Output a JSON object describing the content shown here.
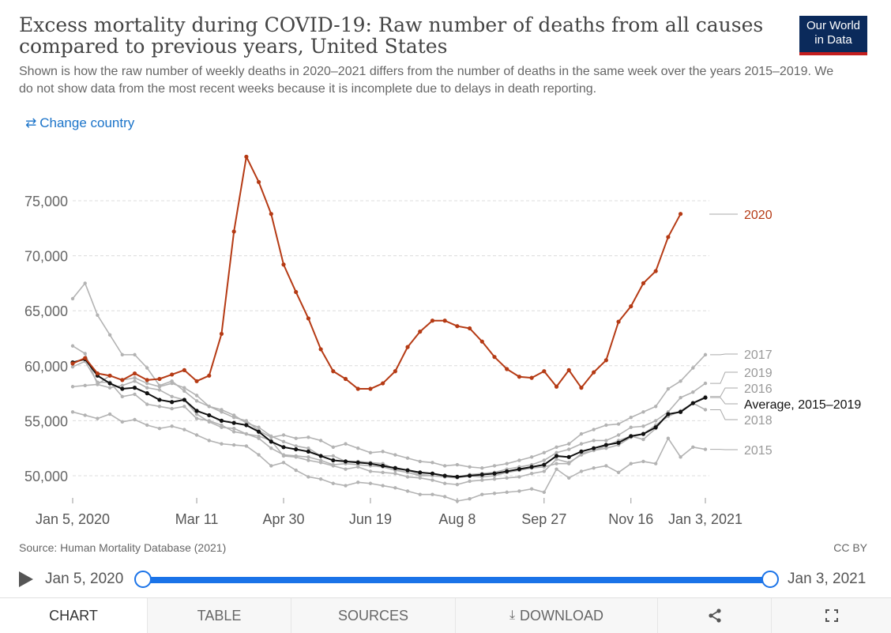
{
  "header": {
    "title": "Excess mortality during COVID-19: Raw number of deaths from all causes compared to previous years, United States",
    "subtitle": "Shown is how the raw number of weekly deaths in 2020–2021 differs from the number of deaths in the same week over the years 2015–2019. We do not show data from the most recent weeks because it is incomplete due to delays in death reporting.",
    "logo_line1": "Our World",
    "logo_line2": "in Data",
    "change_country_label": "Change country"
  },
  "colors": {
    "y2020": "#b53a14",
    "average": "#111111",
    "past": "#b3b3b3",
    "accent": "#1a73e8",
    "logo_bg": "#0b2a5b",
    "logo_stripe": "#c41e1e"
  },
  "chart_data": {
    "type": "line",
    "ylim": [
      48000,
      78000
    ],
    "y_ticks": [
      50000,
      55000,
      60000,
      65000,
      70000,
      75000
    ],
    "y_tick_labels": [
      "50,000",
      "55,000",
      "60,000",
      "65,000",
      "70,000",
      "75,000"
    ],
    "x_tick_labels": [
      "Jan 5, 2020",
      "Mar 11",
      "Apr 30",
      "Jun 19",
      "Aug 8",
      "Sep 27",
      "Nov 16",
      "Jan 3, 2021"
    ],
    "x_tick_weeks": [
      1,
      11,
      18,
      25,
      32,
      39,
      46,
      52
    ],
    "series": [
      {
        "name": "2020",
        "values": [
          60200,
          60700,
          59300,
          59100,
          58700,
          59300,
          58700,
          58800,
          59200,
          59600,
          58600,
          59100,
          62900,
          72200,
          79000,
          76700,
          73800,
          69200,
          66700,
          64300,
          61500,
          59500,
          58800,
          57900,
          57900,
          58400,
          59500,
          61700,
          63100,
          64100,
          64100,
          63600,
          63400,
          62200,
          60800,
          59700,
          59000,
          58900,
          59500,
          58100,
          59600,
          58000,
          59400,
          60500,
          64000,
          65400,
          67500,
          68600,
          71700,
          73800
        ]
      },
      {
        "name": "2015",
        "values": [
          55800,
          55500,
          55200,
          55600,
          54900,
          55100,
          54600,
          54300,
          54500,
          54200,
          53700,
          53200,
          52900,
          52800,
          52700,
          51900,
          50900,
          51200,
          50500,
          49900,
          49700,
          49300,
          49100,
          49400,
          49300,
          49100,
          48900,
          48600,
          48300,
          48300,
          48100,
          47700,
          47900,
          48300,
          48400,
          48500,
          48600,
          48800,
          48500,
          50600,
          49800,
          50400,
          50700,
          50900,
          50300,
          51100,
          51300,
          51100,
          53400,
          51700,
          52600,
          52400
        ]
      },
      {
        "name": "2016",
        "values": [
          58100,
          58200,
          58300,
          58000,
          58200,
          58600,
          58000,
          57800,
          57200,
          56900,
          55600,
          54900,
          54400,
          54300,
          53800,
          53600,
          53200,
          51800,
          51700,
          51400,
          51200,
          50900,
          50600,
          50800,
          50400,
          50300,
          50200,
          49900,
          49800,
          49600,
          49300,
          49200,
          49500,
          49600,
          49700,
          49800,
          49900,
          50200,
          50400,
          51500,
          51200,
          51900,
          52300,
          52500,
          52800,
          53500,
          53800,
          54600,
          55400,
          55900,
          56600,
          57200
        ]
      },
      {
        "name": "2017",
        "values": [
          61800,
          61100,
          58300,
          59100,
          58700,
          58900,
          58400,
          58100,
          58400,
          58000,
          57300,
          56300,
          55800,
          55300,
          55000,
          54100,
          53500,
          53700,
          53400,
          53500,
          53200,
          52600,
          52900,
          52500,
          52100,
          52200,
          51900,
          51600,
          51300,
          51200,
          50900,
          51000,
          50800,
          50700,
          50900,
          51100,
          51400,
          51700,
          52100,
          52600,
          52900,
          53800,
          54200,
          54600,
          54700,
          55300,
          55800,
          56300,
          57900,
          58600,
          59800,
          61000
        ]
      },
      {
        "name": "2018",
        "values": [
          66100,
          67500,
          64600,
          62800,
          61000,
          61000,
          59800,
          58200,
          58600,
          57700,
          56800,
          56300,
          56000,
          55500,
          54800,
          54400,
          53600,
          53100,
          52700,
          52500,
          51800,
          51800,
          51300,
          51300,
          51200,
          51100,
          50600,
          50500,
          50100,
          50000,
          49900,
          49800,
          50000,
          49900,
          50000,
          50300,
          50500,
          50700,
          50800,
          51100,
          51100,
          52000,
          52300,
          52700,
          53200,
          53600,
          53300,
          54300,
          55600,
          55800,
          56600,
          56000
        ]
      },
      {
        "name": "2019",
        "values": [
          59900,
          60400,
          58500,
          58500,
          57200,
          57400,
          56500,
          56300,
          56100,
          56300,
          55200,
          55000,
          54600,
          54000,
          53800,
          53400,
          52500,
          51900,
          51800,
          51700,
          51400,
          51000,
          51100,
          51000,
          50900,
          50800,
          50500,
          50300,
          50000,
          50000,
          49900,
          49900,
          50100,
          50200,
          50300,
          50600,
          50800,
          51000,
          51400,
          52100,
          52400,
          52900,
          53200,
          53200,
          53700,
          54400,
          54500,
          55000,
          55800,
          57100,
          57600,
          58400
        ]
      },
      {
        "name": "Average, 2015–2019",
        "values": [
          60300,
          60600,
          59100,
          58400,
          57900,
          58000,
          57500,
          56900,
          56700,
          56900,
          55900,
          55500,
          55000,
          54800,
          54600,
          54000,
          53100,
          52600,
          52400,
          52200,
          51800,
          51400,
          51300,
          51200,
          51100,
          50900,
          50700,
          50500,
          50300,
          50200,
          50000,
          49900,
          50000,
          50100,
          50200,
          50400,
          50600,
          50800,
          51000,
          51800,
          51700,
          52200,
          52500,
          52800,
          53000,
          53600,
          53800,
          54400,
          55600,
          55800,
          56600,
          57100
        ]
      }
    ],
    "end_labels": [
      {
        "series": "2020",
        "label": "2020"
      },
      {
        "series": "2017",
        "label": "2017"
      },
      {
        "series": "2019",
        "label": "2019"
      },
      {
        "series": "2016",
        "label": "2016"
      },
      {
        "series": "Average, 2015–2019",
        "label": "Average, 2015–2019"
      },
      {
        "series": "2018",
        "label": "2018"
      },
      {
        "series": "2015",
        "label": "2015"
      }
    ],
    "grid": true
  },
  "footer": {
    "source": "Source: Human Mortality Database (2021)",
    "license": "CC BY"
  },
  "timeline": {
    "start_label": "Jan 5, 2020",
    "end_label": "Jan 3, 2021",
    "range_start_fraction": 0,
    "range_end_fraction": 1
  },
  "tabs": [
    {
      "label": "CHART",
      "icon": "",
      "active": true
    },
    {
      "label": "TABLE",
      "icon": "",
      "active": false
    },
    {
      "label": "SOURCES",
      "icon": "",
      "active": false
    },
    {
      "label": "DOWNLOAD",
      "icon": "download-icon",
      "active": false
    },
    {
      "label": "",
      "icon": "share-icon",
      "active": false
    },
    {
      "label": "",
      "icon": "fullscreen-icon",
      "active": false
    }
  ]
}
